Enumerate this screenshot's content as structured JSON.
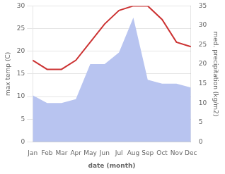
{
  "chart_data": {
    "type": "line",
    "categories": [
      "Jan",
      "Feb",
      "Mar",
      "Apr",
      "May",
      "Jun",
      "Jul",
      "Aug",
      "Sep",
      "Oct",
      "Nov",
      "Dec"
    ],
    "series": [
      {
        "type": "area",
        "axis": "y2",
        "color": "#b8c4f0",
        "values": [
          12,
          10,
          10,
          11,
          20,
          20,
          23,
          32,
          16,
          15,
          15,
          14
        ]
      },
      {
        "type": "line",
        "axis": "y",
        "color": "#cc3333",
        "values": [
          18,
          16,
          16,
          18,
          22,
          26,
          29,
          30,
          30,
          27,
          22,
          21
        ]
      }
    ],
    "xlabel": "date (month)",
    "ylabel": "max temp (C)",
    "y2label": "med. precipitation (kg/m2)",
    "ylim": [
      0,
      30
    ],
    "yticks": [
      0,
      5,
      10,
      15,
      20,
      25,
      30
    ],
    "y2lim": [
      0,
      35
    ],
    "y2ticks": [
      0,
      5,
      10,
      15,
      20,
      25,
      30,
      35
    ],
    "grid": true
  }
}
